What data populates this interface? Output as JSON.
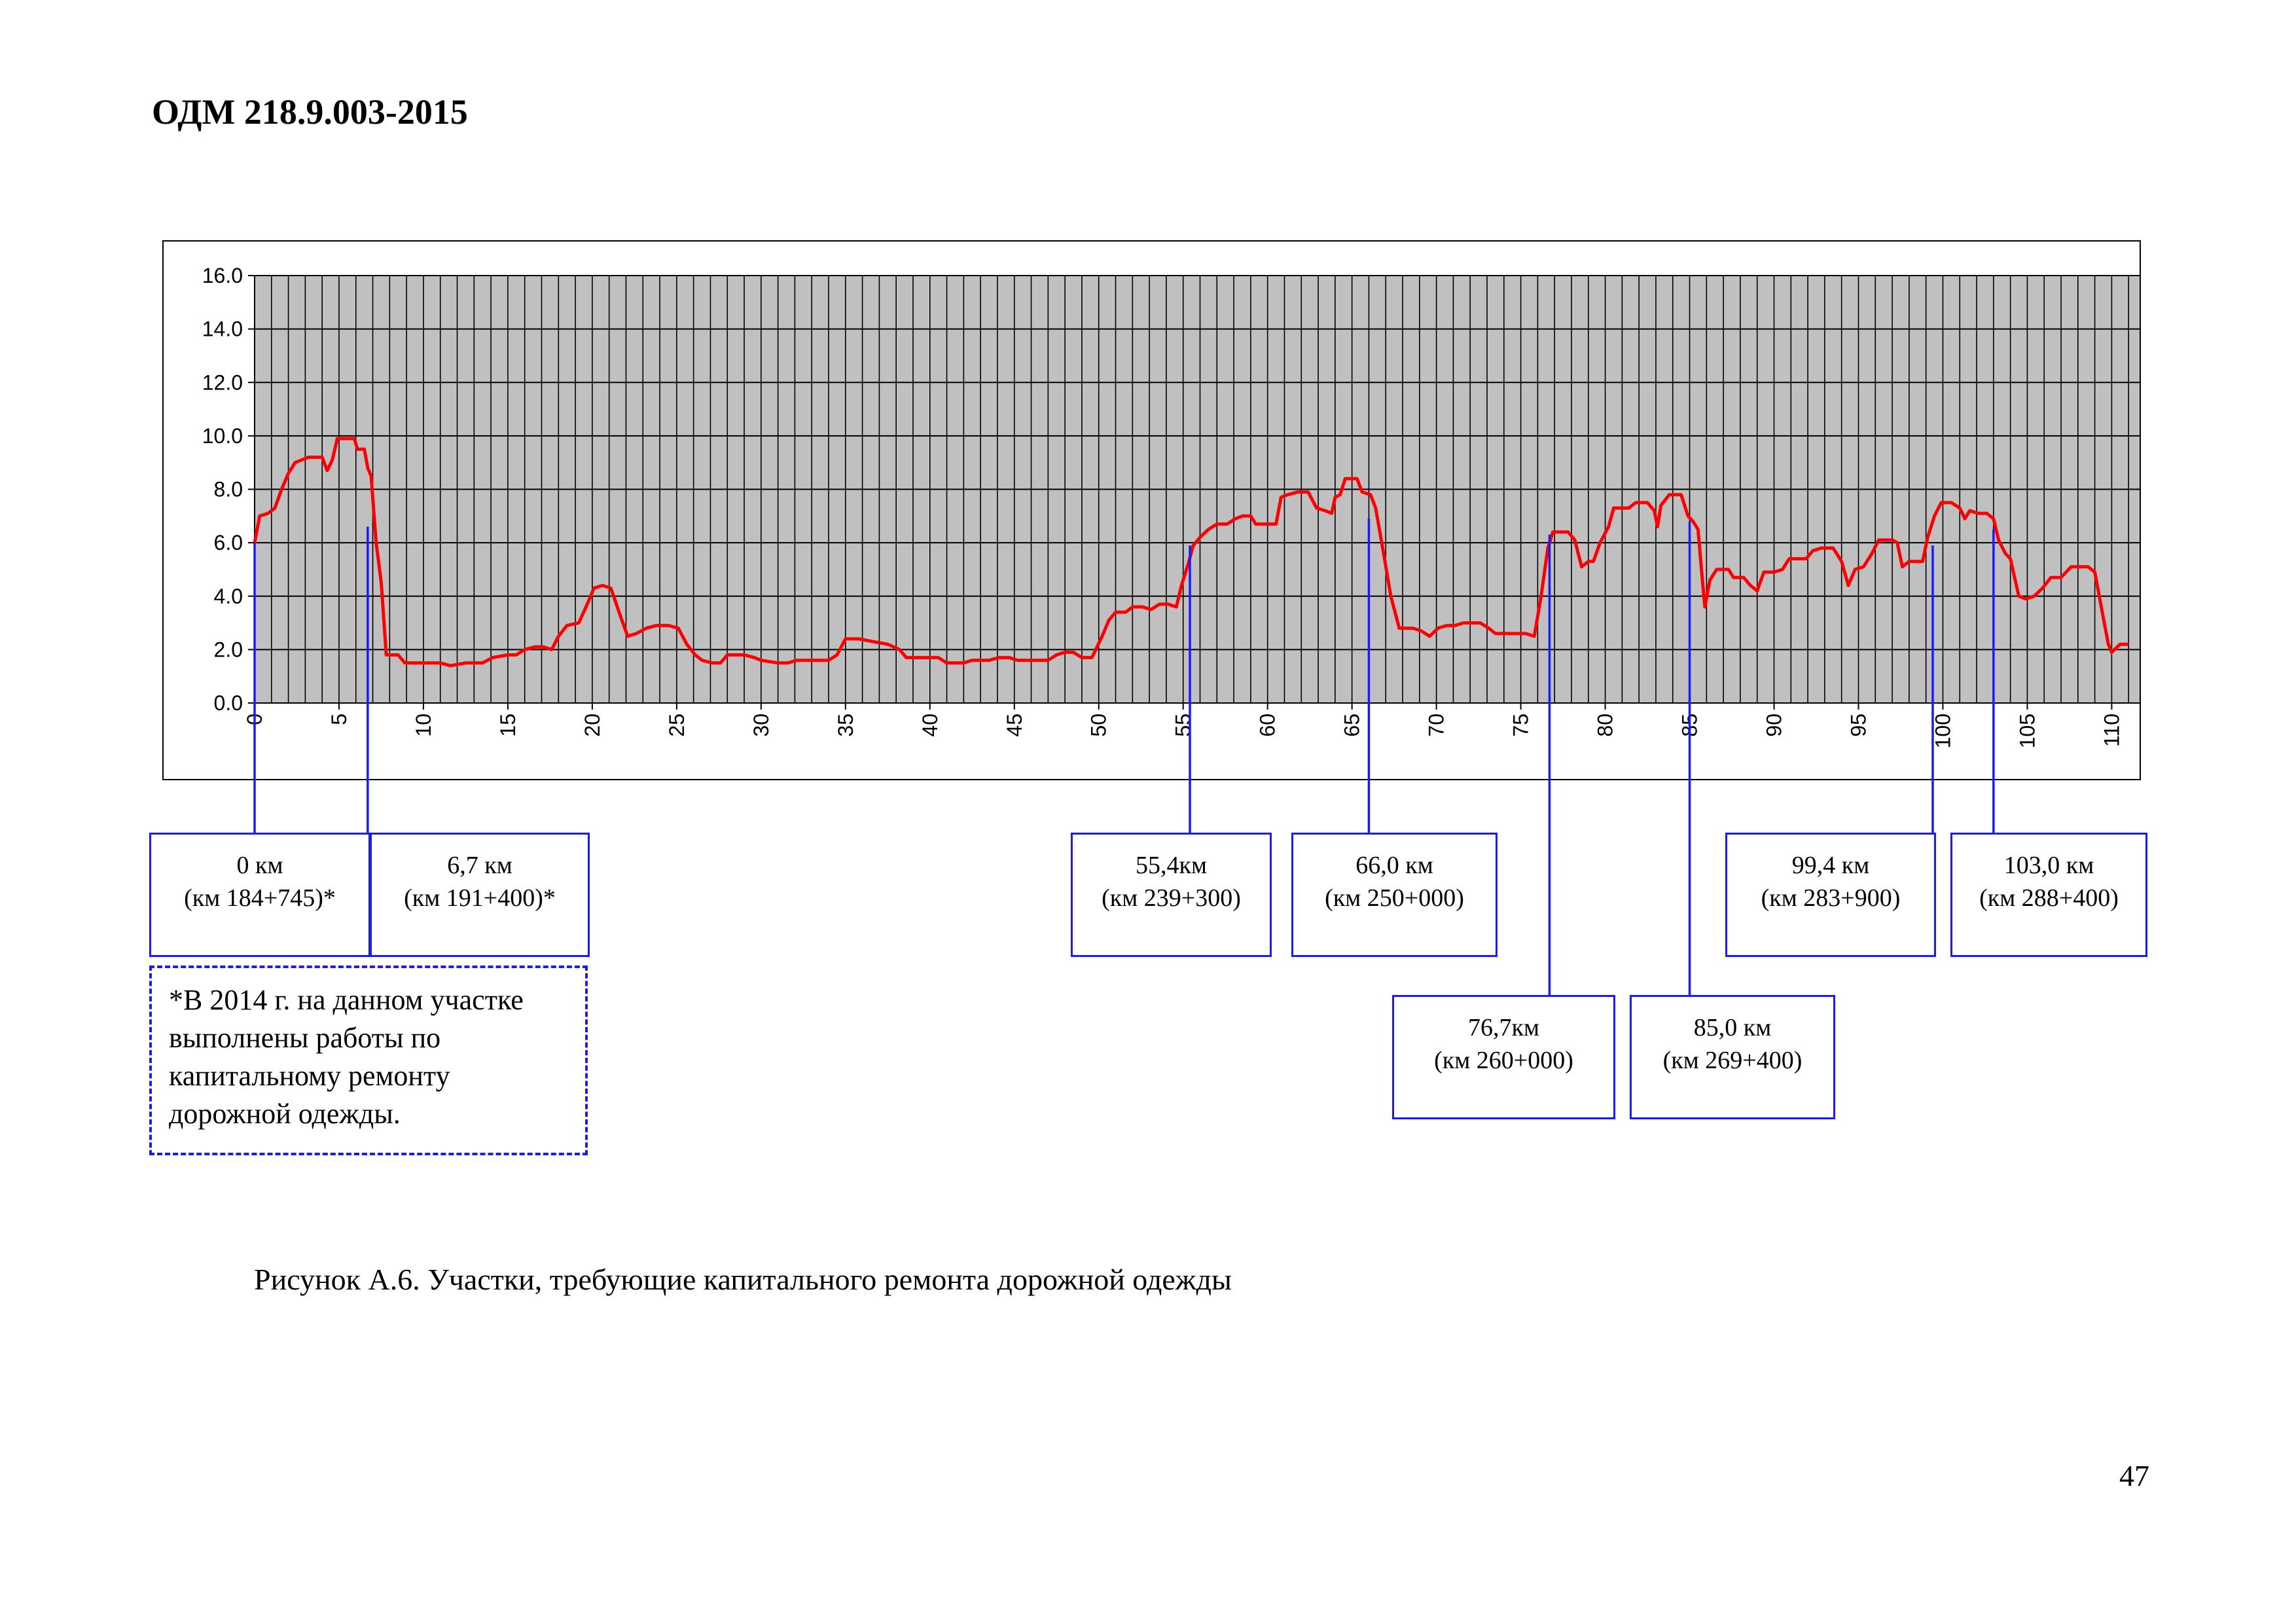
{
  "header": {
    "doc_code": "ОДМ 218.9.003-2015"
  },
  "chart_data": {
    "type": "line",
    "title": "",
    "xlabel": "",
    "ylabel": "",
    "xlim": [
      0,
      112
    ],
    "ylim": [
      0,
      16
    ],
    "y_ticks": [
      "0.0",
      "2.0",
      "4.0",
      "6.0",
      "8.0",
      "10.0",
      "12.0",
      "14.0",
      "16.0"
    ],
    "x_ticks": [
      "0",
      "5",
      "10",
      "15",
      "20",
      "25",
      "30",
      "35",
      "40",
      "45",
      "50",
      "55",
      "60",
      "65",
      "70",
      "75",
      "80",
      "85",
      "90",
      "95",
      "100",
      "105",
      "110"
    ],
    "grid": true,
    "line_color": "#ff0000",
    "plot_bg": "#c0c0c0",
    "series": [
      {
        "name": "",
        "points": [
          [
            0,
            6.0
          ],
          [
            0.3,
            7.0
          ],
          [
            0.8,
            7.1
          ],
          [
            1.2,
            7.3
          ],
          [
            1.6,
            8.0
          ],
          [
            2.0,
            8.6
          ],
          [
            2.4,
            9.0
          ],
          [
            2.8,
            9.1
          ],
          [
            3.2,
            9.2
          ],
          [
            4.0,
            9.2
          ],
          [
            4.3,
            8.7
          ],
          [
            4.6,
            9.1
          ],
          [
            4.9,
            9.9
          ],
          [
            5.9,
            9.9
          ],
          [
            6.1,
            9.5
          ],
          [
            6.5,
            9.5
          ],
          [
            6.7,
            8.8
          ],
          [
            6.9,
            8.5
          ],
          [
            7.2,
            6.0
          ],
          [
            7.5,
            4.5
          ],
          [
            7.8,
            1.8
          ],
          [
            8.5,
            1.8
          ],
          [
            8.9,
            1.5
          ],
          [
            10,
            1.5
          ],
          [
            11,
            1.5
          ],
          [
            11.6,
            1.4
          ],
          [
            12.5,
            1.5
          ],
          [
            13.5,
            1.5
          ],
          [
            14.1,
            1.7
          ],
          [
            15,
            1.8
          ],
          [
            15.5,
            1.8
          ],
          [
            16.0,
            2.0
          ],
          [
            16.6,
            2.1
          ],
          [
            17.1,
            2.1
          ],
          [
            17.6,
            2.0
          ],
          [
            18,
            2.5
          ],
          [
            18.5,
            2.9
          ],
          [
            19.2,
            3.0
          ],
          [
            19.7,
            3.7
          ],
          [
            20.1,
            4.3
          ],
          [
            20.6,
            4.4
          ],
          [
            21.1,
            4.3
          ],
          [
            21.7,
            3.2
          ],
          [
            22.1,
            2.5
          ],
          [
            22.6,
            2.6
          ],
          [
            23.2,
            2.8
          ],
          [
            23.8,
            2.9
          ],
          [
            24.5,
            2.9
          ],
          [
            25.1,
            2.8
          ],
          [
            25.6,
            2.2
          ],
          [
            26.1,
            1.8
          ],
          [
            26.5,
            1.6
          ],
          [
            27.1,
            1.5
          ],
          [
            27.6,
            1.5
          ],
          [
            28,
            1.8
          ],
          [
            29,
            1.8
          ],
          [
            29.6,
            1.7
          ],
          [
            30,
            1.6
          ],
          [
            31,
            1.5
          ],
          [
            31.6,
            1.5
          ],
          [
            32.1,
            1.6
          ],
          [
            33,
            1.6
          ],
          [
            34,
            1.6
          ],
          [
            34.5,
            1.8
          ],
          [
            35,
            2.4
          ],
          [
            35.8,
            2.4
          ],
          [
            36.6,
            2.3
          ],
          [
            37.5,
            2.2
          ],
          [
            38.2,
            2.0
          ],
          [
            38.6,
            1.7
          ],
          [
            39.5,
            1.7
          ],
          [
            40.5,
            1.7
          ],
          [
            41,
            1.5
          ],
          [
            42,
            1.5
          ],
          [
            42.5,
            1.6
          ],
          [
            43.5,
            1.6
          ],
          [
            44.1,
            1.7
          ],
          [
            44.7,
            1.7
          ],
          [
            45.2,
            1.6
          ],
          [
            46,
            1.6
          ],
          [
            47,
            1.6
          ],
          [
            47.5,
            1.8
          ],
          [
            48,
            1.9
          ],
          [
            48.5,
            1.9
          ],
          [
            49,
            1.7
          ],
          [
            49.6,
            1.7
          ],
          [
            50.2,
            2.5
          ],
          [
            50.6,
            3.1
          ],
          [
            51,
            3.4
          ],
          [
            51.6,
            3.4
          ],
          [
            52,
            3.6
          ],
          [
            52.6,
            3.6
          ],
          [
            53.1,
            3.5
          ],
          [
            53.6,
            3.7
          ],
          [
            54.1,
            3.7
          ],
          [
            54.6,
            3.6
          ],
          [
            54.9,
            4.4
          ],
          [
            55.3,
            5.2
          ],
          [
            55.6,
            5.9
          ],
          [
            56,
            6.2
          ],
          [
            56.5,
            6.5
          ],
          [
            57,
            6.7
          ],
          [
            57.6,
            6.7
          ],
          [
            58.1,
            6.9
          ],
          [
            58.5,
            7.0
          ],
          [
            59,
            7.0
          ],
          [
            59.3,
            6.7
          ],
          [
            60,
            6.7
          ],
          [
            60.5,
            6.7
          ],
          [
            60.8,
            7.7
          ],
          [
            61.2,
            7.8
          ],
          [
            61.8,
            7.9
          ],
          [
            62.4,
            7.9
          ],
          [
            62.9,
            7.3
          ],
          [
            63.4,
            7.2
          ],
          [
            63.8,
            7.1
          ],
          [
            64,
            7.7
          ],
          [
            64.3,
            7.8
          ],
          [
            64.6,
            8.4
          ],
          [
            65.3,
            8.4
          ],
          [
            65.6,
            7.9
          ],
          [
            66.1,
            7.8
          ],
          [
            66.4,
            7.3
          ],
          [
            66.9,
            5.5
          ],
          [
            67.3,
            4.0
          ],
          [
            67.8,
            2.8
          ],
          [
            68.6,
            2.8
          ],
          [
            69.1,
            2.7
          ],
          [
            69.6,
            2.5
          ],
          [
            70.1,
            2.8
          ],
          [
            70.6,
            2.9
          ],
          [
            71.1,
            2.9
          ],
          [
            71.6,
            3.0
          ],
          [
            72.1,
            3.0
          ],
          [
            72.6,
            3.0
          ],
          [
            73.1,
            2.8
          ],
          [
            73.5,
            2.6
          ],
          [
            74.5,
            2.6
          ],
          [
            75.3,
            2.6
          ],
          [
            75.8,
            2.5
          ],
          [
            76.2,
            4.0
          ],
          [
            76.6,
            5.8
          ],
          [
            76.9,
            6.4
          ],
          [
            77.8,
            6.4
          ],
          [
            78.2,
            6.1
          ],
          [
            78.6,
            5.1
          ],
          [
            79,
            5.3
          ],
          [
            79.3,
            5.3
          ],
          [
            79.7,
            6.0
          ],
          [
            80.2,
            6.6
          ],
          [
            80.5,
            7.3
          ],
          [
            81.4,
            7.3
          ],
          [
            81.8,
            7.5
          ],
          [
            82.5,
            7.5
          ],
          [
            82.9,
            7.2
          ],
          [
            83.1,
            6.6
          ],
          [
            83.3,
            7.4
          ],
          [
            83.8,
            7.8
          ],
          [
            84.5,
            7.8
          ],
          [
            84.9,
            7.0
          ],
          [
            85.2,
            6.8
          ],
          [
            85.5,
            6.5
          ],
          [
            85.7,
            5.0
          ],
          [
            85.9,
            3.6
          ],
          [
            86.2,
            4.6
          ],
          [
            86.6,
            5.0
          ],
          [
            87.3,
            5.0
          ],
          [
            87.6,
            4.7
          ],
          [
            88.2,
            4.7
          ],
          [
            88.6,
            4.4
          ],
          [
            89,
            4.2
          ],
          [
            89.4,
            4.9
          ],
          [
            90,
            4.9
          ],
          [
            90.5,
            5.0
          ],
          [
            90.9,
            5.4
          ],
          [
            91.9,
            5.4
          ],
          [
            92.3,
            5.7
          ],
          [
            92.8,
            5.8
          ],
          [
            93.5,
            5.8
          ],
          [
            94,
            5.3
          ],
          [
            94.4,
            4.4
          ],
          [
            94.8,
            5.0
          ],
          [
            95.3,
            5.1
          ],
          [
            95.8,
            5.6
          ],
          [
            96.2,
            6.1
          ],
          [
            97,
            6.1
          ],
          [
            97.3,
            6.0
          ],
          [
            97.6,
            5.1
          ],
          [
            98,
            5.3
          ],
          [
            98.8,
            5.3
          ],
          [
            99.1,
            6.2
          ],
          [
            99.5,
            7.0
          ],
          [
            99.9,
            7.5
          ],
          [
            100.5,
            7.5
          ],
          [
            101,
            7.3
          ],
          [
            101.3,
            6.9
          ],
          [
            101.6,
            7.2
          ],
          [
            102.1,
            7.1
          ],
          [
            102.6,
            7.1
          ],
          [
            103,
            6.9
          ],
          [
            103.3,
            6.1
          ],
          [
            103.7,
            5.6
          ],
          [
            104,
            5.4
          ],
          [
            104.5,
            4.0
          ],
          [
            104.9,
            3.9
          ],
          [
            105.4,
            4.0
          ],
          [
            105.9,
            4.3
          ],
          [
            106.4,
            4.7
          ],
          [
            107,
            4.7
          ],
          [
            107.6,
            5.1
          ],
          [
            108.2,
            5.1
          ],
          [
            108.6,
            5.1
          ],
          [
            109,
            4.9
          ],
          [
            109.5,
            3.2
          ],
          [
            109.8,
            2.2
          ],
          [
            110,
            1.9
          ],
          [
            110.5,
            2.2
          ],
          [
            111,
            2.2
          ]
        ]
      }
    ],
    "markers": [
      {
        "km": 0,
        "y": 6.0
      },
      {
        "km": 6.7,
        "y": 6.6
      },
      {
        "km": 55.4,
        "y": 5.9
      },
      {
        "km": 66.0,
        "y": 6.9
      },
      {
        "km": 76.7,
        "y": 6.3
      },
      {
        "km": 85.0,
        "y": 6.8
      },
      {
        "km": 99.4,
        "y": 5.9
      },
      {
        "km": 103.0,
        "y": 6.5
      }
    ]
  },
  "callouts": [
    {
      "line1": "0 км",
      "line2": "(км 184+745)*"
    },
    {
      "line1": "6,7 км",
      "line2": "(км 191+400)*"
    },
    {
      "line1": "55,4км",
      "line2": "(км 239+300)"
    },
    {
      "line1": "66,0 км",
      "line2": "(км 250+000)"
    },
    {
      "line1": "99,4 км",
      "line2": "(км 283+900)"
    },
    {
      "line1": "103,0 км",
      "line2": "(км 288+400)"
    },
    {
      "line1": "76,7км",
      "line2": "(км 260+000)"
    },
    {
      "line1": "85,0 км",
      "line2": "(км 269+400)"
    }
  ],
  "note": {
    "text": "*В 2014 г. на данном участке выполнены работы по капитальному ремонту дорожной одежды."
  },
  "caption": "Рисунок А.6. Участки, требующие капитального ремонта дорожной одежды",
  "page_number": "47"
}
